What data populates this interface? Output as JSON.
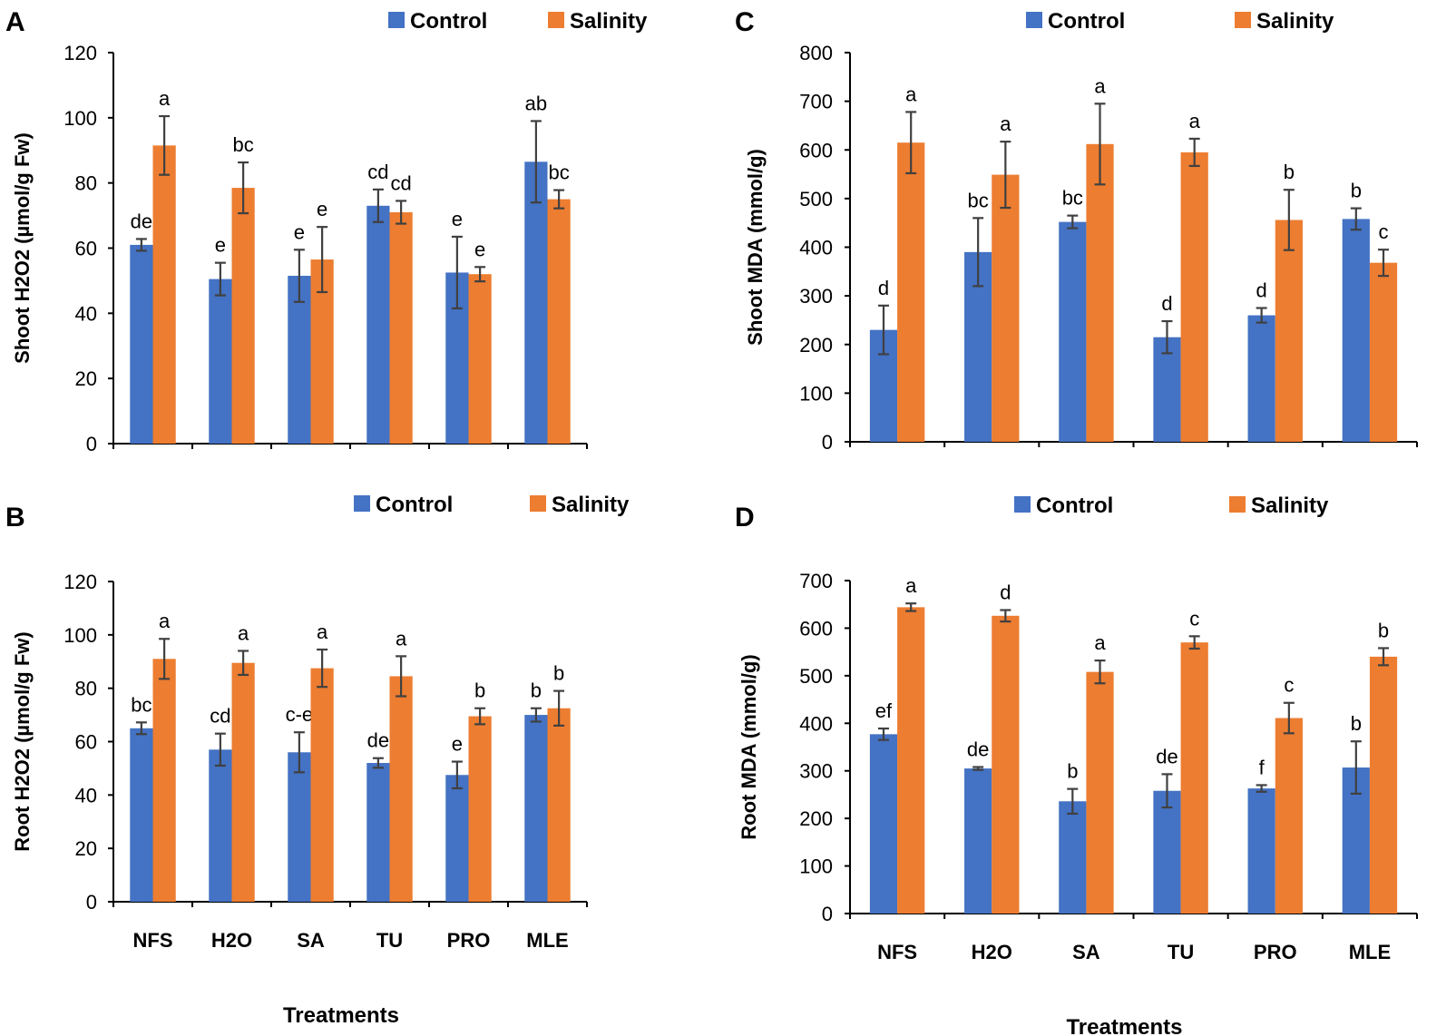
{
  "figure": {
    "xlabel": "Treatments",
    "legend": {
      "control": "Control",
      "salinity": "Salinity"
    },
    "colors": {
      "control": "#4472C4",
      "salinity": "#ED7D31",
      "error": "#404040"
    }
  },
  "chart_data": [
    {
      "panel": "A",
      "type": "bar",
      "categories": [
        "NFS",
        "H2O",
        "SA",
        "TU",
        "PRO",
        "MLE"
      ],
      "ylabel": "Shoot H2O2 (µmol/g Fw)",
      "ylim": [
        0,
        120
      ],
      "yticks": [
        0,
        20,
        40,
        60,
        80,
        100,
        120
      ],
      "show_xticklabels": false,
      "show_xlabel": false,
      "series": [
        {
          "name": "Control",
          "values": [
            61,
            50.5,
            51.5,
            73,
            52.5,
            86.5
          ],
          "errors": [
            1.8,
            5,
            8,
            5,
            11,
            12.5
          ],
          "letters": [
            "de",
            "e",
            "e",
            "cd",
            "e",
            "ab"
          ]
        },
        {
          "name": "Salinity",
          "values": [
            91.5,
            78.5,
            56.5,
            71,
            52,
            75
          ],
          "errors": [
            9,
            7.8,
            10,
            3.5,
            2.2,
            2.8
          ],
          "letters": [
            "a",
            "bc",
            "e",
            "cd",
            "e",
            "bc"
          ]
        }
      ]
    },
    {
      "panel": "B",
      "type": "bar",
      "categories": [
        "NFS",
        "H2O",
        "SA",
        "TU",
        "PRO",
        "MLE"
      ],
      "ylabel": "Root H2O2 (µmol/g Fw)",
      "ylim": [
        0,
        120
      ],
      "yticks": [
        0,
        20,
        40,
        60,
        80,
        100,
        120
      ],
      "show_xticklabels": true,
      "show_xlabel": true,
      "series": [
        {
          "name": "Control",
          "values": [
            65,
            57,
            56,
            52,
            47.5,
            70
          ],
          "errors": [
            2.2,
            6,
            7.5,
            1.8,
            5,
            2.5
          ],
          "letters": [
            "bc",
            "cd",
            "c-e",
            "de",
            "e",
            "b"
          ]
        },
        {
          "name": "Salinity",
          "values": [
            91,
            89.5,
            87.5,
            84.5,
            69.5,
            72.5
          ],
          "errors": [
            7.5,
            4.5,
            7,
            7.5,
            3,
            6.5
          ],
          "letters": [
            "a",
            "a",
            "a",
            "a",
            "b",
            "b"
          ]
        }
      ]
    },
    {
      "panel": "C",
      "type": "bar",
      "categories": [
        "NFS",
        "H2O",
        "SA",
        "TU",
        "PRO",
        "MLE"
      ],
      "ylabel": "Shoot MDA (mmol/g)",
      "ylim": [
        0,
        800
      ],
      "yticks": [
        0,
        100,
        200,
        300,
        400,
        500,
        600,
        700,
        800
      ],
      "show_xticklabels": false,
      "show_xlabel": false,
      "series": [
        {
          "name": "Control",
          "values": [
            230,
            390,
            452,
            215,
            260,
            458
          ],
          "errors": [
            50,
            70,
            13,
            33,
            15,
            22
          ],
          "letters": [
            "d",
            "bc",
            "bc",
            "d",
            "d",
            "b"
          ]
        },
        {
          "name": "Salinity",
          "values": [
            615,
            549,
            612,
            595,
            456,
            368
          ],
          "errors": [
            63,
            68,
            83,
            28,
            62,
            27
          ],
          "letters": [
            "a",
            "a",
            "a",
            "a",
            "b",
            "c"
          ]
        }
      ]
    },
    {
      "panel": "D",
      "type": "bar",
      "categories": [
        "NFS",
        "H2O",
        "SA",
        "TU",
        "PRO",
        "MLE"
      ],
      "ylabel": "Root MDA (mmol/g)",
      "ylim": [
        0,
        700
      ],
      "yticks": [
        0,
        100,
        200,
        300,
        400,
        500,
        600,
        700
      ],
      "show_xticklabels": true,
      "show_xlabel": true,
      "series": [
        {
          "name": "Control",
          "values": [
            377,
            305,
            236,
            258,
            263,
            307
          ],
          "errors": [
            12,
            3,
            26,
            35,
            7,
            55
          ],
          "letters": [
            "ef",
            "de",
            "b",
            "de",
            "f",
            "b"
          ]
        },
        {
          "name": "Salinity",
          "values": [
            644,
            626,
            508,
            570,
            411,
            540
          ],
          "errors": [
            8,
            12,
            24,
            13,
            32,
            18
          ],
          "letters": [
            "a",
            "d",
            "a",
            "c",
            "c",
            "b"
          ]
        }
      ]
    }
  ]
}
